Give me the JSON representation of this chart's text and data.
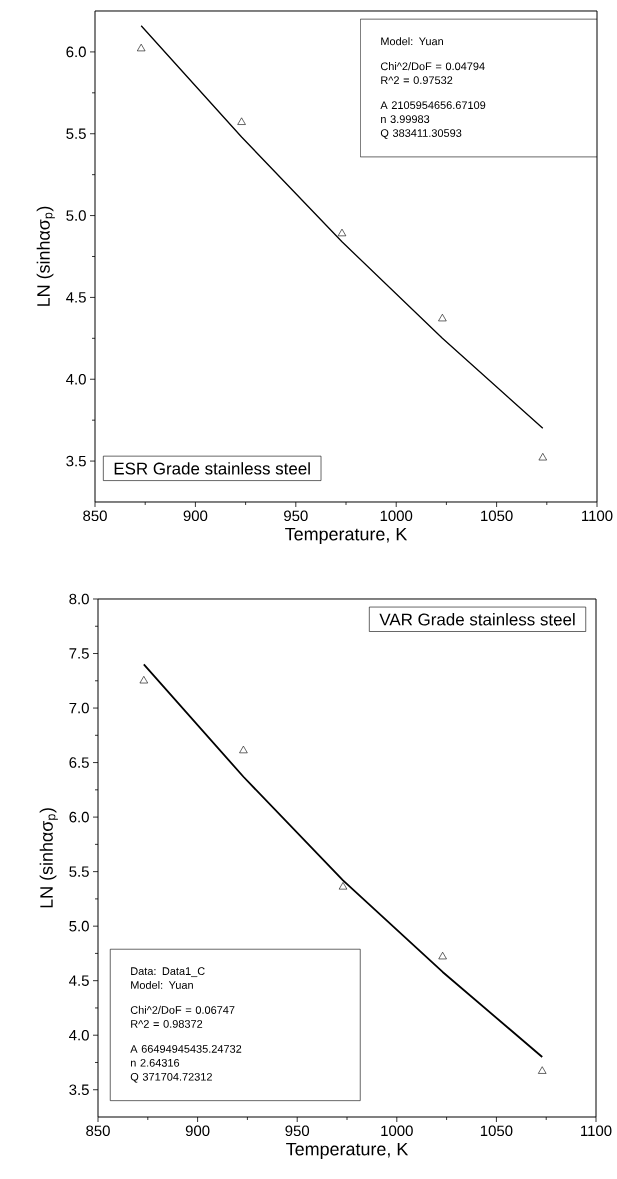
{
  "chart_data": [
    {
      "type": "scatter",
      "xlabel": "Temperature, K",
      "ylabel": "LN (sinhασ$_{p}$)",
      "xlim": [
        850,
        1100
      ],
      "xticks": [
        850,
        900,
        950,
        1000,
        1050,
        1100
      ],
      "ylim": [
        3.25,
        6.25
      ],
      "yticks": [
        {
          "value": 3.5,
          "label": "3.5"
        },
        {
          "value": 4,
          "label": "4.0"
        },
        {
          "value": 4.5,
          "label": "4.5"
        },
        {
          "value": 5,
          "label": "5.0"
        },
        {
          "value": 5.5,
          "label": "5.5"
        },
        {
          "value": 6,
          "label": "6.0"
        }
      ],
      "series": [
        {
          "marker": "triangle",
          "color": "#000000",
          "x": [
            873,
            923,
            973,
            1023,
            1073
          ],
          "values": [
            6.02,
            5.57,
            4.89,
            4.37,
            3.52
          ]
        },
        {
          "type": "line",
          "marker": "none",
          "color": "#000000",
          "x": [
            873,
            923,
            973,
            1023,
            1073
          ],
          "values": [
            6.16,
            5.48,
            4.84,
            4.25,
            3.7
          ]
        }
      ],
      "annotations": [
        "ESR Grade stainless steel",
        "Model: Yuan",
        "Chi^2/DoF = 0.04794",
        "R^2 = 0.97532",
        "A 2105954656.67109",
        "n 3.99983",
        "Q 383411.30593"
      ]
    },
    {
      "type": "scatter",
      "xlabel": "Temperature, K",
      "ylabel": "LN (sinhασ$_{p}$)",
      "xlim": [
        850,
        1100
      ],
      "xticks": [
        850,
        900,
        950,
        1000,
        1050,
        1100
      ],
      "ylim": [
        3.25,
        8.0
      ],
      "yticks": [
        {
          "value": 3.5,
          "label": "3.5"
        },
        {
          "value": 4,
          "label": "4.0"
        },
        {
          "value": 4.5,
          "label": "4.5"
        },
        {
          "value": 5,
          "label": "5.0"
        },
        {
          "value": 5.5,
          "label": "5.5"
        },
        {
          "value": 6,
          "label": "6.0"
        },
        {
          "value": 6.5,
          "label": "6.5"
        },
        {
          "value": 7,
          "label": "7.0"
        },
        {
          "value": 7.5,
          "label": "7.5"
        },
        {
          "value": 8,
          "label": "8.0"
        }
      ],
      "series": [
        {
          "marker": "triangle",
          "color": "#000000",
          "x": [
            873,
            923,
            973,
            1023,
            1073
          ],
          "values": [
            7.25,
            6.61,
            5.36,
            4.72,
            3.67
          ]
        },
        {
          "type": "line",
          "marker": "none",
          "color": "#000000",
          "x": [
            873,
            923,
            973,
            1023,
            1073
          ],
          "values": [
            7.4,
            6.37,
            5.42,
            4.58,
            3.8
          ]
        }
      ],
      "annotations": [
        "VAR Grade stainless steel",
        "Data: Data1_C",
        "Model: Yuan",
        "Chi^2/DoF = 0.06747",
        "R^2 = 0.98372",
        "A 66494945435.24732",
        "n 2.64316",
        "Q 371704.72312"
      ]
    }
  ]
}
